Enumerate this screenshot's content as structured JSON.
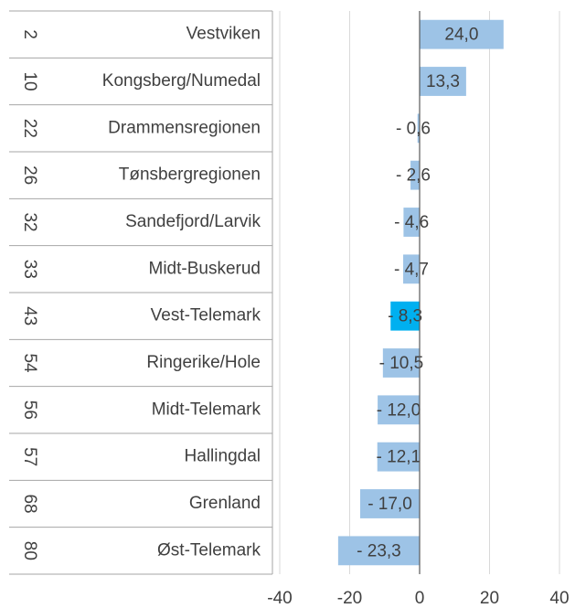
{
  "chart_data": {
    "type": "bar",
    "orientation": "horizontal",
    "ranks": [
      "2",
      "10",
      "22",
      "26",
      "32",
      "33",
      "43",
      "54",
      "56",
      "57",
      "68",
      "80"
    ],
    "categories": [
      "Vestviken",
      "Kongsberg/Numedal",
      "Drammensregionen",
      "Tønsbergregionen",
      "Sandefjord/Larvik",
      "Midt-Buskerud",
      "Vest-Telemark",
      "Ringerike/Hole",
      "Midt-Telemark",
      "Hallingdal",
      "Grenland",
      "Øst-Telemark"
    ],
    "values": [
      24.0,
      13.3,
      -0.6,
      -2.6,
      -4.6,
      -4.7,
      -8.3,
      -10.5,
      -12.0,
      -12.1,
      -17.0,
      -23.3
    ],
    "value_labels": [
      "24,0",
      "13,3",
      "- 0,6",
      "- 2,6",
      "- 4,6",
      "- 4,7",
      "- 8,3",
      "- 10,5",
      "- 12,0",
      "- 12,1",
      "- 17,0",
      "- 23,3"
    ],
    "colors": [
      "#9dc3e6",
      "#9dc3e6",
      "#9dc3e6",
      "#9dc3e6",
      "#9dc3e6",
      "#9dc3e6",
      "#00b0f0",
      "#9dc3e6",
      "#9dc3e6",
      "#9dc3e6",
      "#9dc3e6",
      "#9dc3e6"
    ],
    "xlim": [
      -40,
      40
    ],
    "xticks": [
      -40,
      -20,
      0,
      20,
      40
    ],
    "grid": true
  }
}
